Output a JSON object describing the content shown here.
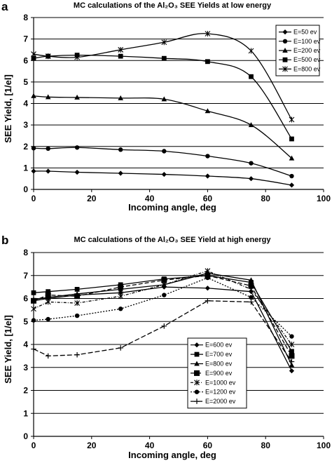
{
  "chart_data": [
    {
      "panel_label": "a",
      "type": "line",
      "title": "MC calculations of the Al₂O₃ SEE Yields at low energy",
      "xlabel": "Incoming angle, deg",
      "ylabel": "SEE Yield, [1/el]",
      "xlim": [
        0,
        100
      ],
      "ylim": [
        0,
        8
      ],
      "xticks": [
        0,
        20,
        40,
        60,
        80,
        100
      ],
      "yticks": [
        0,
        1,
        2,
        3,
        4,
        5,
        6,
        7,
        8
      ],
      "grid": "horizontal",
      "legend_position": "top-right",
      "x": [
        0,
        5,
        15,
        30,
        45,
        60,
        75,
        89
      ],
      "series": [
        {
          "name": "E=50 ev",
          "marker": "diamond",
          "values": [
            0.85,
            0.85,
            0.8,
            0.75,
            0.7,
            0.62,
            0.5,
            0.2
          ]
        },
        {
          "name": "E=100 ev",
          "marker": "circle",
          "values": [
            1.92,
            1.9,
            1.95,
            1.85,
            1.78,
            1.55,
            1.22,
            0.62
          ]
        },
        {
          "name": "E=200 ev",
          "marker": "triangle",
          "values": [
            4.35,
            4.3,
            4.28,
            4.25,
            4.2,
            3.65,
            3.0,
            1.45
          ]
        },
        {
          "name": "E=500 ev",
          "marker": "square",
          "values": [
            6.1,
            6.2,
            6.25,
            6.2,
            6.1,
            5.95,
            5.25,
            2.35
          ]
        },
        {
          "name": "E=800 ev",
          "marker": "star",
          "values": [
            6.3,
            6.2,
            6.15,
            6.5,
            6.85,
            7.25,
            6.45,
            3.25
          ]
        }
      ]
    },
    {
      "panel_label": "b",
      "type": "line",
      "title": "MC calculations of the Al₂O₃ SEE Yield at high energy",
      "xlabel": "Incoming angle, deg",
      "ylabel": "SEE Yield, [1/el]",
      "xlim": [
        0,
        100
      ],
      "ylim": [
        0,
        8
      ],
      "xticks": [
        0,
        20,
        40,
        60,
        80,
        100
      ],
      "yticks": [
        0,
        1,
        2,
        3,
        4,
        5,
        6,
        7,
        8
      ],
      "grid": "horizontal",
      "legend_position": "bottom-right",
      "x": [
        0,
        5,
        15,
        30,
        45,
        60,
        75,
        89
      ],
      "series": [
        {
          "name": "E=600 ev",
          "marker": "diamond",
          "dash": "",
          "values": [
            5.9,
            6.0,
            6.15,
            6.25,
            6.5,
            6.45,
            6.3,
            2.85
          ]
        },
        {
          "name": "E=700 ev",
          "marker": "square",
          "dash": "",
          "values": [
            6.25,
            6.3,
            6.4,
            6.6,
            6.85,
            7.0,
            6.7,
            3.7
          ]
        },
        {
          "name": "E=800 ev",
          "marker": "triangle",
          "dash": "",
          "values": [
            5.95,
            6.05,
            6.2,
            6.4,
            6.6,
            7.1,
            6.8,
            3.1
          ]
        },
        {
          "name": "E=900 ev",
          "marker": "square-large",
          "dash": "6,3",
          "values": [
            5.9,
            6.15,
            6.1,
            6.5,
            6.8,
            7.0,
            6.55,
            3.5
          ]
        },
        {
          "name": "E=1000 ev",
          "marker": "star",
          "dash": "4,2,1,2",
          "values": [
            5.55,
            5.85,
            5.8,
            6.1,
            6.6,
            7.2,
            6.4,
            4.0
          ]
        },
        {
          "name": "E=1200 ev",
          "marker": "circle",
          "dash": "2,2",
          "values": [
            5.05,
            5.1,
            5.25,
            5.55,
            6.15,
            6.9,
            6.05,
            4.35
          ]
        },
        {
          "name": "E=2000 ev",
          "marker": "plus",
          "dash": "7,3",
          "values": [
            3.8,
            3.5,
            3.55,
            3.85,
            4.8,
            5.9,
            5.85,
            3.25
          ]
        }
      ]
    }
  ]
}
